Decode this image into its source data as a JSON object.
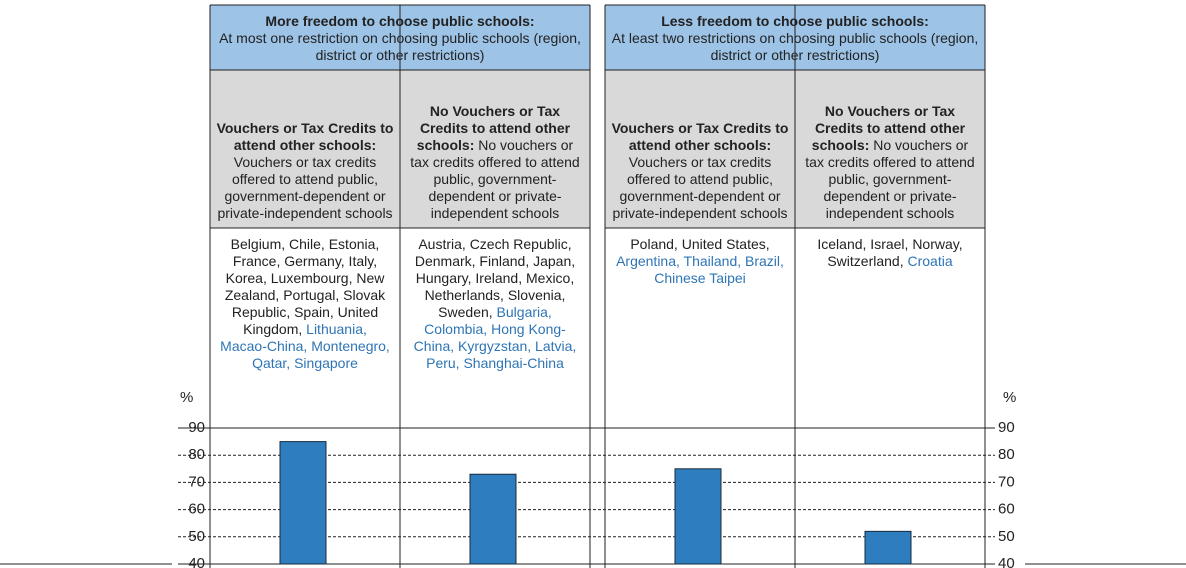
{
  "chart_data": {
    "type": "bar",
    "y_label": "%",
    "ylim": [
      40,
      90
    ],
    "yticks": [
      40,
      50,
      60,
      70,
      80,
      90
    ],
    "grid": true,
    "color": "#2e7ebf",
    "values": [
      85,
      73,
      75,
      52
    ],
    "groups": [
      {
        "title": "More freedom to choose public schools:",
        "subtitle": "At most one restriction on choosing public schools (region, district or other restrictions)",
        "columns": [
          {
            "heading": "Vouchers or Tax Credits to attend other schools:",
            "description": "Vouchers or tax credits offered to attend public, government-dependent or private-independent schools",
            "countries_oecd": "Belgium, Chile, Estonia, France, Germany, Italy, Korea, Luxembourg, New Zealand, Portugal, Slovak Republic, Spain, United Kingdom,",
            "countries_partner": "Lithuania, Macao-China, Montenegro, Qatar, Singapore"
          },
          {
            "heading": "No Vouchers or Tax Credits to attend other schools:",
            "description": "No vouchers or tax credits offered to attend public, government-dependent or private-independent schools",
            "countries_oecd": "Austria, Czech Republic, Denmark, Finland, Japan, Hungary, Ireland, Mexico, Netherlands, Slovenia, Sweden,",
            "countries_partner": "Bulgaria, Colombia, Hong Kong-China, Kyrgyzstan, Latvia, Peru, Shanghai-China"
          }
        ]
      },
      {
        "title": "Less freedom to choose public schools:",
        "subtitle": "At least two restrictions on choosing public schools (region, district or other restrictions)",
        "columns": [
          {
            "heading": "Vouchers or Tax Credits to attend other schools:",
            "description": "Vouchers or tax credits offered to attend public, government-dependent or private-independent schools",
            "countries_oecd": "Poland, United States,",
            "countries_partner": "Argentina, Thailand, Brazil, Chinese Taipei"
          },
          {
            "heading": "No Vouchers or Tax Credits to attend other schools:",
            "description": "No vouchers or tax credits offered to attend public, government-dependent or private-independent schools",
            "countries_oecd": "Iceland, Israel, Norway, Switzerland,",
            "countries_partner": "Croatia"
          }
        ]
      }
    ]
  }
}
